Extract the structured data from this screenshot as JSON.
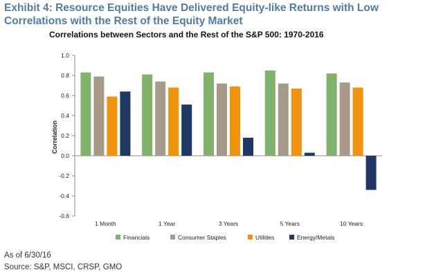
{
  "exhibit": {
    "title": "Exhibit 4: Resource Equities Have Delivered Equity-like Returns with Low Correlations with the Rest of the Equity Market"
  },
  "footnotes": {
    "as_of": "As of 6/30/16",
    "source": "Source: S&P, MSCI, CRSP, GMO"
  },
  "chart_data": {
    "type": "bar",
    "title": "Correlations between Sectors and the Rest of the S&P 500: 1970-2016",
    "xlabel": "",
    "ylabel": "Correlation",
    "ylim": [
      -0.6,
      1.0
    ],
    "yticks": [
      "1.0",
      "0.8",
      "0.6",
      "0.4",
      "0.2",
      "0.0",
      "-0.2",
      "-0.4",
      "-0.6"
    ],
    "ytick_values": [
      1.0,
      0.8,
      0.6,
      0.4,
      0.2,
      0.0,
      -0.2,
      -0.4,
      -0.6
    ],
    "categories": [
      "1 Month",
      "1 Year",
      "3 Years",
      "5 Years",
      "10 Years"
    ],
    "series": [
      {
        "name": "Financials",
        "color": "#7fb26a",
        "values": [
          0.83,
          0.81,
          0.83,
          0.85,
          0.82
        ]
      },
      {
        "name": "Consumer Staples",
        "color": "#a89a8a",
        "values": [
          0.79,
          0.74,
          0.72,
          0.72,
          0.73
        ]
      },
      {
        "name": "Utilities",
        "color": "#f0930f",
        "values": [
          0.59,
          0.68,
          0.69,
          0.67,
          0.68
        ]
      },
      {
        "name": "Energy/Metals",
        "color": "#1f3864",
        "values": [
          0.64,
          0.51,
          0.18,
          0.03,
          -0.34
        ]
      }
    ],
    "grid": false,
    "legend_position": "bottom"
  }
}
